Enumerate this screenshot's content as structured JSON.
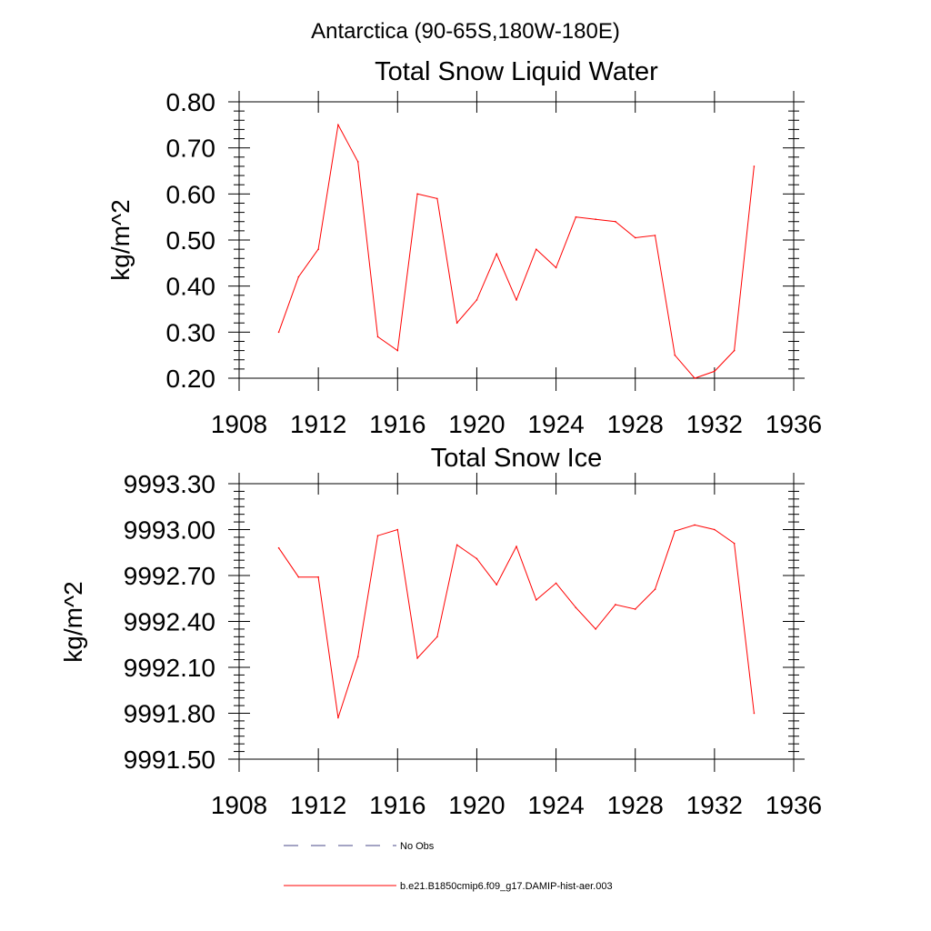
{
  "figure": {
    "main_title": "Antarctica (90-65S,180W-180E)"
  },
  "chart_data": [
    {
      "type": "line",
      "title": "Total Snow Liquid Water",
      "xlabel": "",
      "ylabel": "kg/m^2",
      "xlim": [
        1908,
        1936
      ],
      "ylim": [
        0.2,
        0.8
      ],
      "x_ticks": [
        "1908",
        "1912",
        "1916",
        "1920",
        "1924",
        "1928",
        "1932",
        "1936"
      ],
      "y_ticks": [
        "0.20",
        "0.30",
        "0.40",
        "0.50",
        "0.60",
        "0.70",
        "0.80"
      ],
      "grid": false,
      "series": [
        {
          "name": "b.e21.B1850cmip6.f09_g17.DAMIP-hist-aer.003",
          "color": "#ff0000",
          "x": [
            1910,
            1911,
            1912,
            1913,
            1914,
            1915,
            1916,
            1917,
            1918,
            1919,
            1920,
            1921,
            1922,
            1923,
            1924,
            1925,
            1926,
            1927,
            1928,
            1929,
            1930,
            1931,
            1932,
            1933,
            1934
          ],
          "y": [
            0.3,
            0.42,
            0.48,
            0.75,
            0.67,
            0.29,
            0.26,
            0.6,
            0.59,
            0.32,
            0.37,
            0.47,
            0.37,
            0.48,
            0.44,
            0.55,
            0.545,
            0.54,
            0.505,
            0.51,
            0.25,
            0.2,
            0.215,
            0.26,
            0.66
          ]
        }
      ]
    },
    {
      "type": "line",
      "title": "Total Snow Ice",
      "xlabel": "",
      "ylabel": "kg/m^2",
      "xlim": [
        1908,
        1936
      ],
      "ylim": [
        9991.5,
        9993.3
      ],
      "x_ticks": [
        "1908",
        "1912",
        "1916",
        "1920",
        "1924",
        "1928",
        "1932",
        "1936"
      ],
      "y_ticks": [
        "9991.50",
        "9991.80",
        "9992.10",
        "9992.40",
        "9992.70",
        "9993.00",
        "9993.30"
      ],
      "grid": false,
      "series": [
        {
          "name": "b.e21.B1850cmip6.f09_g17.DAMIP-hist-aer.003",
          "color": "#ff0000",
          "x": [
            1910,
            1911,
            1912,
            1913,
            1914,
            1915,
            1916,
            1917,
            1918,
            1919,
            1920,
            1921,
            1922,
            1923,
            1924,
            1925,
            1926,
            1927,
            1928,
            1929,
            1930,
            1931,
            1932,
            1933,
            1934
          ],
          "y": [
            9992.88,
            9992.69,
            9992.69,
            9991.77,
            9992.17,
            9992.96,
            9993.0,
            9992.16,
            9992.3,
            9992.9,
            9992.81,
            9992.64,
            9992.89,
            9992.54,
            9992.65,
            9992.49,
            9992.35,
            9992.51,
            9992.48,
            9992.61,
            9992.99,
            9993.03,
            9993.0,
            9992.91,
            9991.8
          ]
        }
      ]
    }
  ],
  "legend": {
    "placement": "bottom-center",
    "items": [
      {
        "label": "No Obs",
        "color": "#4a4a8a",
        "style": "dashed"
      },
      {
        "label": "b.e21.B1850cmip6.f09_g17.DAMIP-hist-aer.003",
        "color": "#ff0000",
        "style": "solid"
      }
    ]
  }
}
